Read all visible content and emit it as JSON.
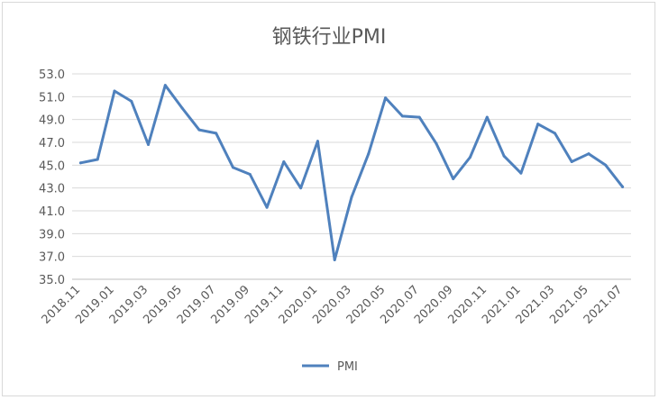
{
  "chart_data": {
    "type": "line",
    "title": "钢铁行业PMI",
    "xlabel": "",
    "ylabel": "",
    "ylim": [
      35.0,
      53.0
    ],
    "yticks": [
      "35.0",
      "37.0",
      "39.0",
      "41.0",
      "43.0",
      "45.0",
      "47.0",
      "49.0",
      "51.0",
      "53.0"
    ],
    "grid": true,
    "legend_position": "bottom",
    "categories": [
      "2018.11",
      "2018.12",
      "2019.01",
      "2019.02",
      "2019.03",
      "2019.04",
      "2019.05",
      "2019.06",
      "2019.07",
      "2019.08",
      "2019.09",
      "2019.10",
      "2019.11",
      "2019.12",
      "2020.01",
      "2020.02",
      "2020.03",
      "2020.04",
      "2020.05",
      "2020.06",
      "2020.07",
      "2020.08",
      "2020.09",
      "2020.10",
      "2020.11",
      "2020.12",
      "2021.01",
      "2021.02",
      "2021.03",
      "2021.04",
      "2021.05",
      "2021.06",
      "2021.07"
    ],
    "xtick_labels": [
      "2018.11",
      "2019.01",
      "2019.03",
      "2019.05",
      "2019.07",
      "2019.09",
      "2019.11",
      "2020.01",
      "2020.03",
      "2020.05",
      "2020.07",
      "2020.09",
      "2020.11",
      "2021.01",
      "2021.03",
      "2021.05",
      "2021.07"
    ],
    "series": [
      {
        "name": "PMI",
        "color": "#4f81bd",
        "values": [
          45.2,
          45.5,
          51.5,
          50.6,
          46.8,
          52.0,
          50.0,
          48.1,
          47.8,
          44.8,
          44.2,
          41.3,
          45.3,
          43.0,
          47.1,
          36.7,
          42.2,
          46.0,
          50.9,
          49.3,
          49.2,
          46.9,
          43.8,
          45.7,
          49.2,
          45.8,
          44.3,
          48.6,
          47.8,
          45.3,
          46.0,
          45.0,
          43.1
        ]
      }
    ]
  }
}
